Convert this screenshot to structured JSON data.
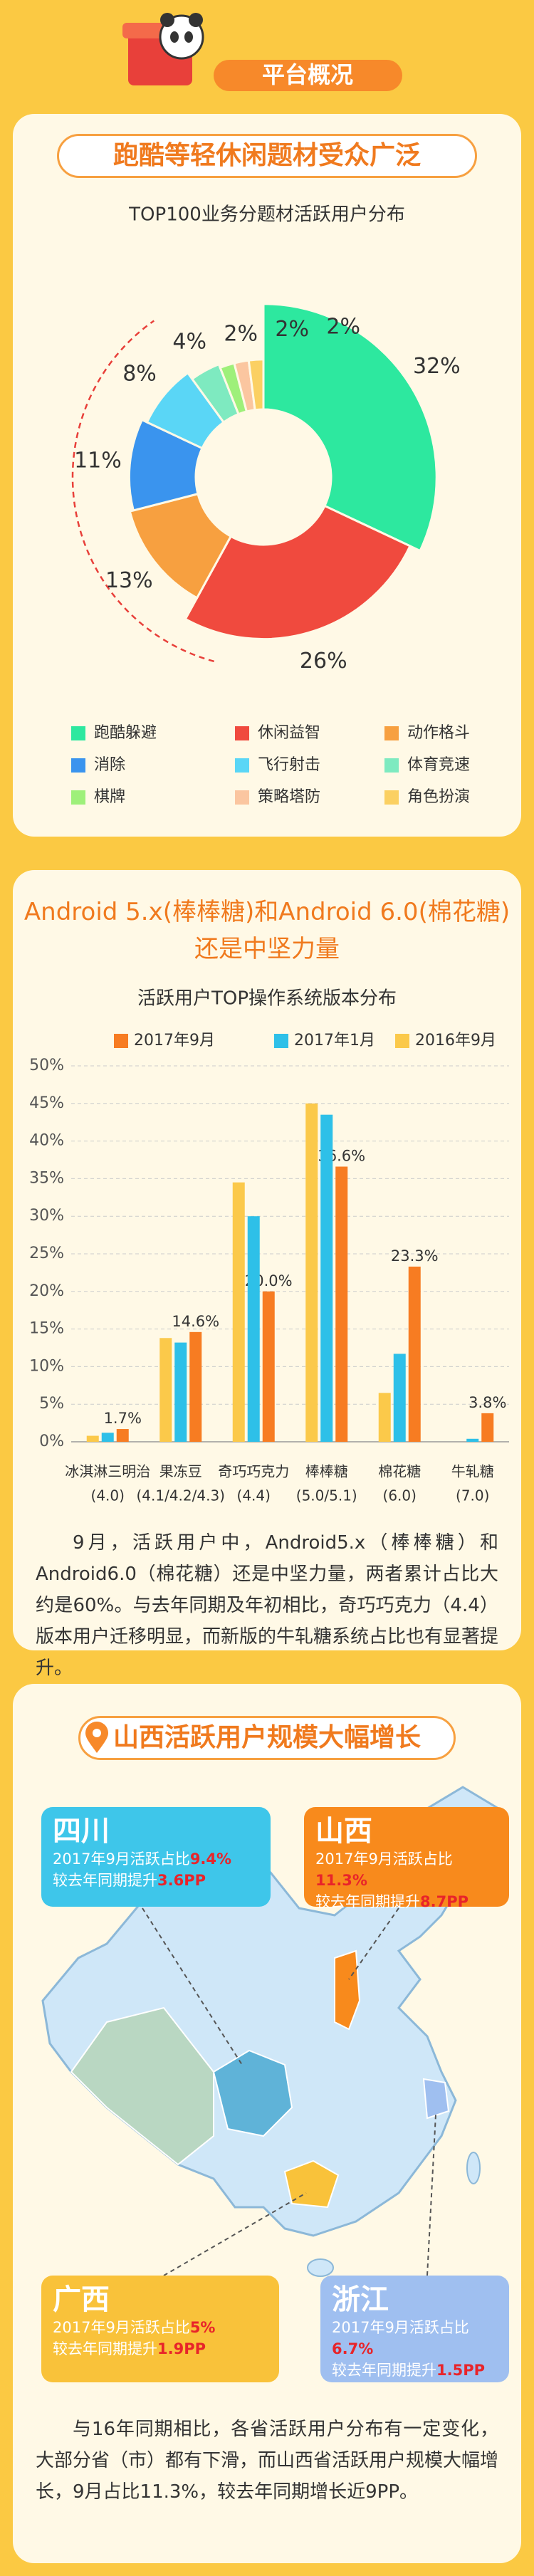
{
  "header": {
    "title": "平台概况"
  },
  "chart_data": [
    {
      "type": "donut",
      "heading": "跑酷等轻休闲题材受众广泛",
      "title": "TOP100业务分题材活跃用户分布",
      "categories": [
        "跑酷躲避",
        "休闲益智",
        "动作格斗",
        "消除",
        "飞行射击",
        "体育竞速",
        "棋牌",
        "策略塔防",
        "角色扮演"
      ],
      "values": [
        32,
        26,
        13,
        11,
        8,
        4,
        2,
        2,
        2
      ],
      "value_labels": [
        "32%",
        "26%",
        "13%",
        "11%",
        "8%",
        "4%",
        "2%",
        "2%",
        "2%"
      ],
      "colors": [
        "#2de89f",
        "#f04a3e",
        "#f7a040",
        "#3a94ee",
        "#5ad6f6",
        "#7eeac0",
        "#9ef07a",
        "#fbc6a0",
        "#fbd062"
      ]
    },
    {
      "type": "bar",
      "heading": [
        "Android 5.x(棒棒糖)和Android 6.0(棉花糖)",
        "还是中坚力量"
      ],
      "title": "活跃用户TOP操作系统版本分布",
      "categories": [
        {
          "name": "冰淇淋三明治",
          "version": "(4.0)"
        },
        {
          "name": "果冻豆",
          "version": "(4.1/4.2/4.3)"
        },
        {
          "name": "奇巧巧克力",
          "version": "(4.4)"
        },
        {
          "name": "棒棒糖",
          "version": "(5.0/5.1)"
        },
        {
          "name": "棉花糖",
          "version": "(6.0)"
        },
        {
          "name": "牛轧糖",
          "version": "(7.0)"
        }
      ],
      "series": [
        {
          "name": "2017年9月",
          "color": "#f77c22",
          "values": [
            1.7,
            14.6,
            20.0,
            36.6,
            23.3,
            3.8
          ],
          "value_labels": [
            "1.7%",
            "14.6%",
            "20.0%",
            "36.6%",
            "23.3%",
            "3.8%"
          ]
        },
        {
          "name": "2017年1月",
          "color": "#2ec0e8",
          "values": [
            1.2,
            13.2,
            30,
            43.5,
            11.7,
            0.4
          ]
        },
        {
          "name": "2016年9月",
          "color": "#fbc94a",
          "values": [
            0.8,
            13.8,
            34.5,
            45,
            6.5,
            0
          ]
        }
      ],
      "ylim": [
        0,
        50
      ],
      "yticks": [
        {
          "value": 0,
          "label": "0%"
        },
        {
          "value": 5,
          "label": "5%"
        },
        {
          "value": 10,
          "label": "10%"
        },
        {
          "value": 15,
          "label": "15%"
        },
        {
          "value": 20,
          "label": "20%"
        },
        {
          "value": 25,
          "label": "25%"
        },
        {
          "value": 30,
          "label": "30%"
        },
        {
          "value": 35,
          "label": "35%"
        },
        {
          "value": 40,
          "label": "40%"
        },
        {
          "value": 45,
          "label": "45%"
        },
        {
          "value": 50,
          "label": "50%"
        }
      ],
      "grid": true
    }
  ],
  "paragraphs": [
    "9月，活跃用户中，Android5.x（棒棒糖）和Android6.0（棉花糖）还是中坚力量，两者累计占比大约是60%。与去年同期及年初相比，奇巧巧克力（4.4）版本用户迁移明显，而新版的牛轧糖系统占比也有显著提升。",
    "与16年同期相比，各省活跃用户分布有一定变化，大部分省（市）都有下滑，而山西省活跃用户规模大幅增长，9月占比11.3%，较去年同期增长近9PP。"
  ],
  "map_section": {
    "title": "山西活跃用户规模大幅增长",
    "callouts": [
      {
        "province": "四川",
        "share_label": "2017年9月活跃占比",
        "share": "9.4%",
        "growth_label": "较去年同期提升",
        "growth": "3.6PP",
        "color": "#3ec6ea"
      },
      {
        "province": "山西",
        "share_label": "2017年9月活跃占比",
        "share": "11.3%",
        "growth_label": "较去年同期提升",
        "growth": "8.7PP",
        "color": "#f88a1c"
      },
      {
        "province": "广西",
        "share_label": "2017年9月活跃占比",
        "share": "5%",
        "growth_label": "较去年同期提升",
        "growth": "1.9PP",
        "color": "#f9c23a"
      },
      {
        "province": "浙江",
        "share_label": "2017年9月活跃占比",
        "share": "6.7%",
        "growth_label": "较去年同期提升",
        "growth": "1.5PP",
        "color": "#9fbff0"
      }
    ]
  }
}
